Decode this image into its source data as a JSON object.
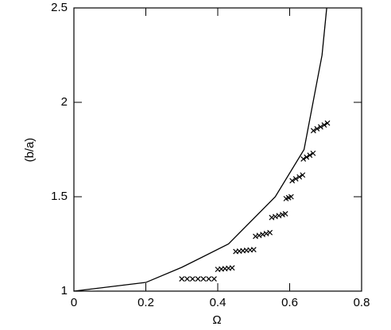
{
  "chart_data": {
    "type": "line",
    "xlabel": "Ω",
    "ylabel": "(b/a)",
    "xlim": [
      0,
      0.8
    ],
    "ylim": [
      1,
      2.5
    ],
    "xticks": [
      0,
      0.2,
      0.4,
      0.6,
      0.8
    ],
    "yticks": [
      1,
      1.5,
      2,
      2.5
    ],
    "series": [
      {
        "type": "line",
        "color": "#000000",
        "x": [
          0,
          0.2,
          0.3,
          0.43,
          0.56,
          0.64,
          0.665,
          0.69,
          0.703
        ],
        "values": [
          1,
          1.046,
          1.126,
          1.25,
          1.5,
          1.75,
          2.0,
          2.25,
          2.5
        ]
      },
      {
        "type": "scatter",
        "color": "#000000",
        "x": [
          0.3,
          0.315,
          0.33,
          0.345,
          0.36,
          0.375,
          0.39,
          0.4,
          0.41,
          0.42,
          0.43,
          0.44,
          0.45,
          0.46,
          0.47,
          0.48,
          0.49,
          0.5,
          0.505,
          0.515,
          0.525,
          0.535,
          0.545,
          0.55,
          0.56,
          0.57,
          0.58,
          0.588,
          0.59,
          0.597,
          0.604,
          0.607,
          0.617,
          0.627,
          0.636,
          0.638,
          0.647,
          0.656,
          0.665,
          0.666,
          0.676,
          0.686,
          0.696,
          0.705
        ],
        "values": [
          1.065,
          1.065,
          1.065,
          1.065,
          1.065,
          1.065,
          1.065,
          1.115,
          1.117,
          1.119,
          1.121,
          1.123,
          1.21,
          1.212,
          1.214,
          1.216,
          1.218,
          1.22,
          1.29,
          1.295,
          1.3,
          1.305,
          1.31,
          1.39,
          1.395,
          1.4,
          1.405,
          1.41,
          1.49,
          1.495,
          1.5,
          1.585,
          1.595,
          1.605,
          1.615,
          1.7,
          1.71,
          1.72,
          1.73,
          1.85,
          1.86,
          1.87,
          1.88,
          1.89
        ]
      }
    ]
  }
}
